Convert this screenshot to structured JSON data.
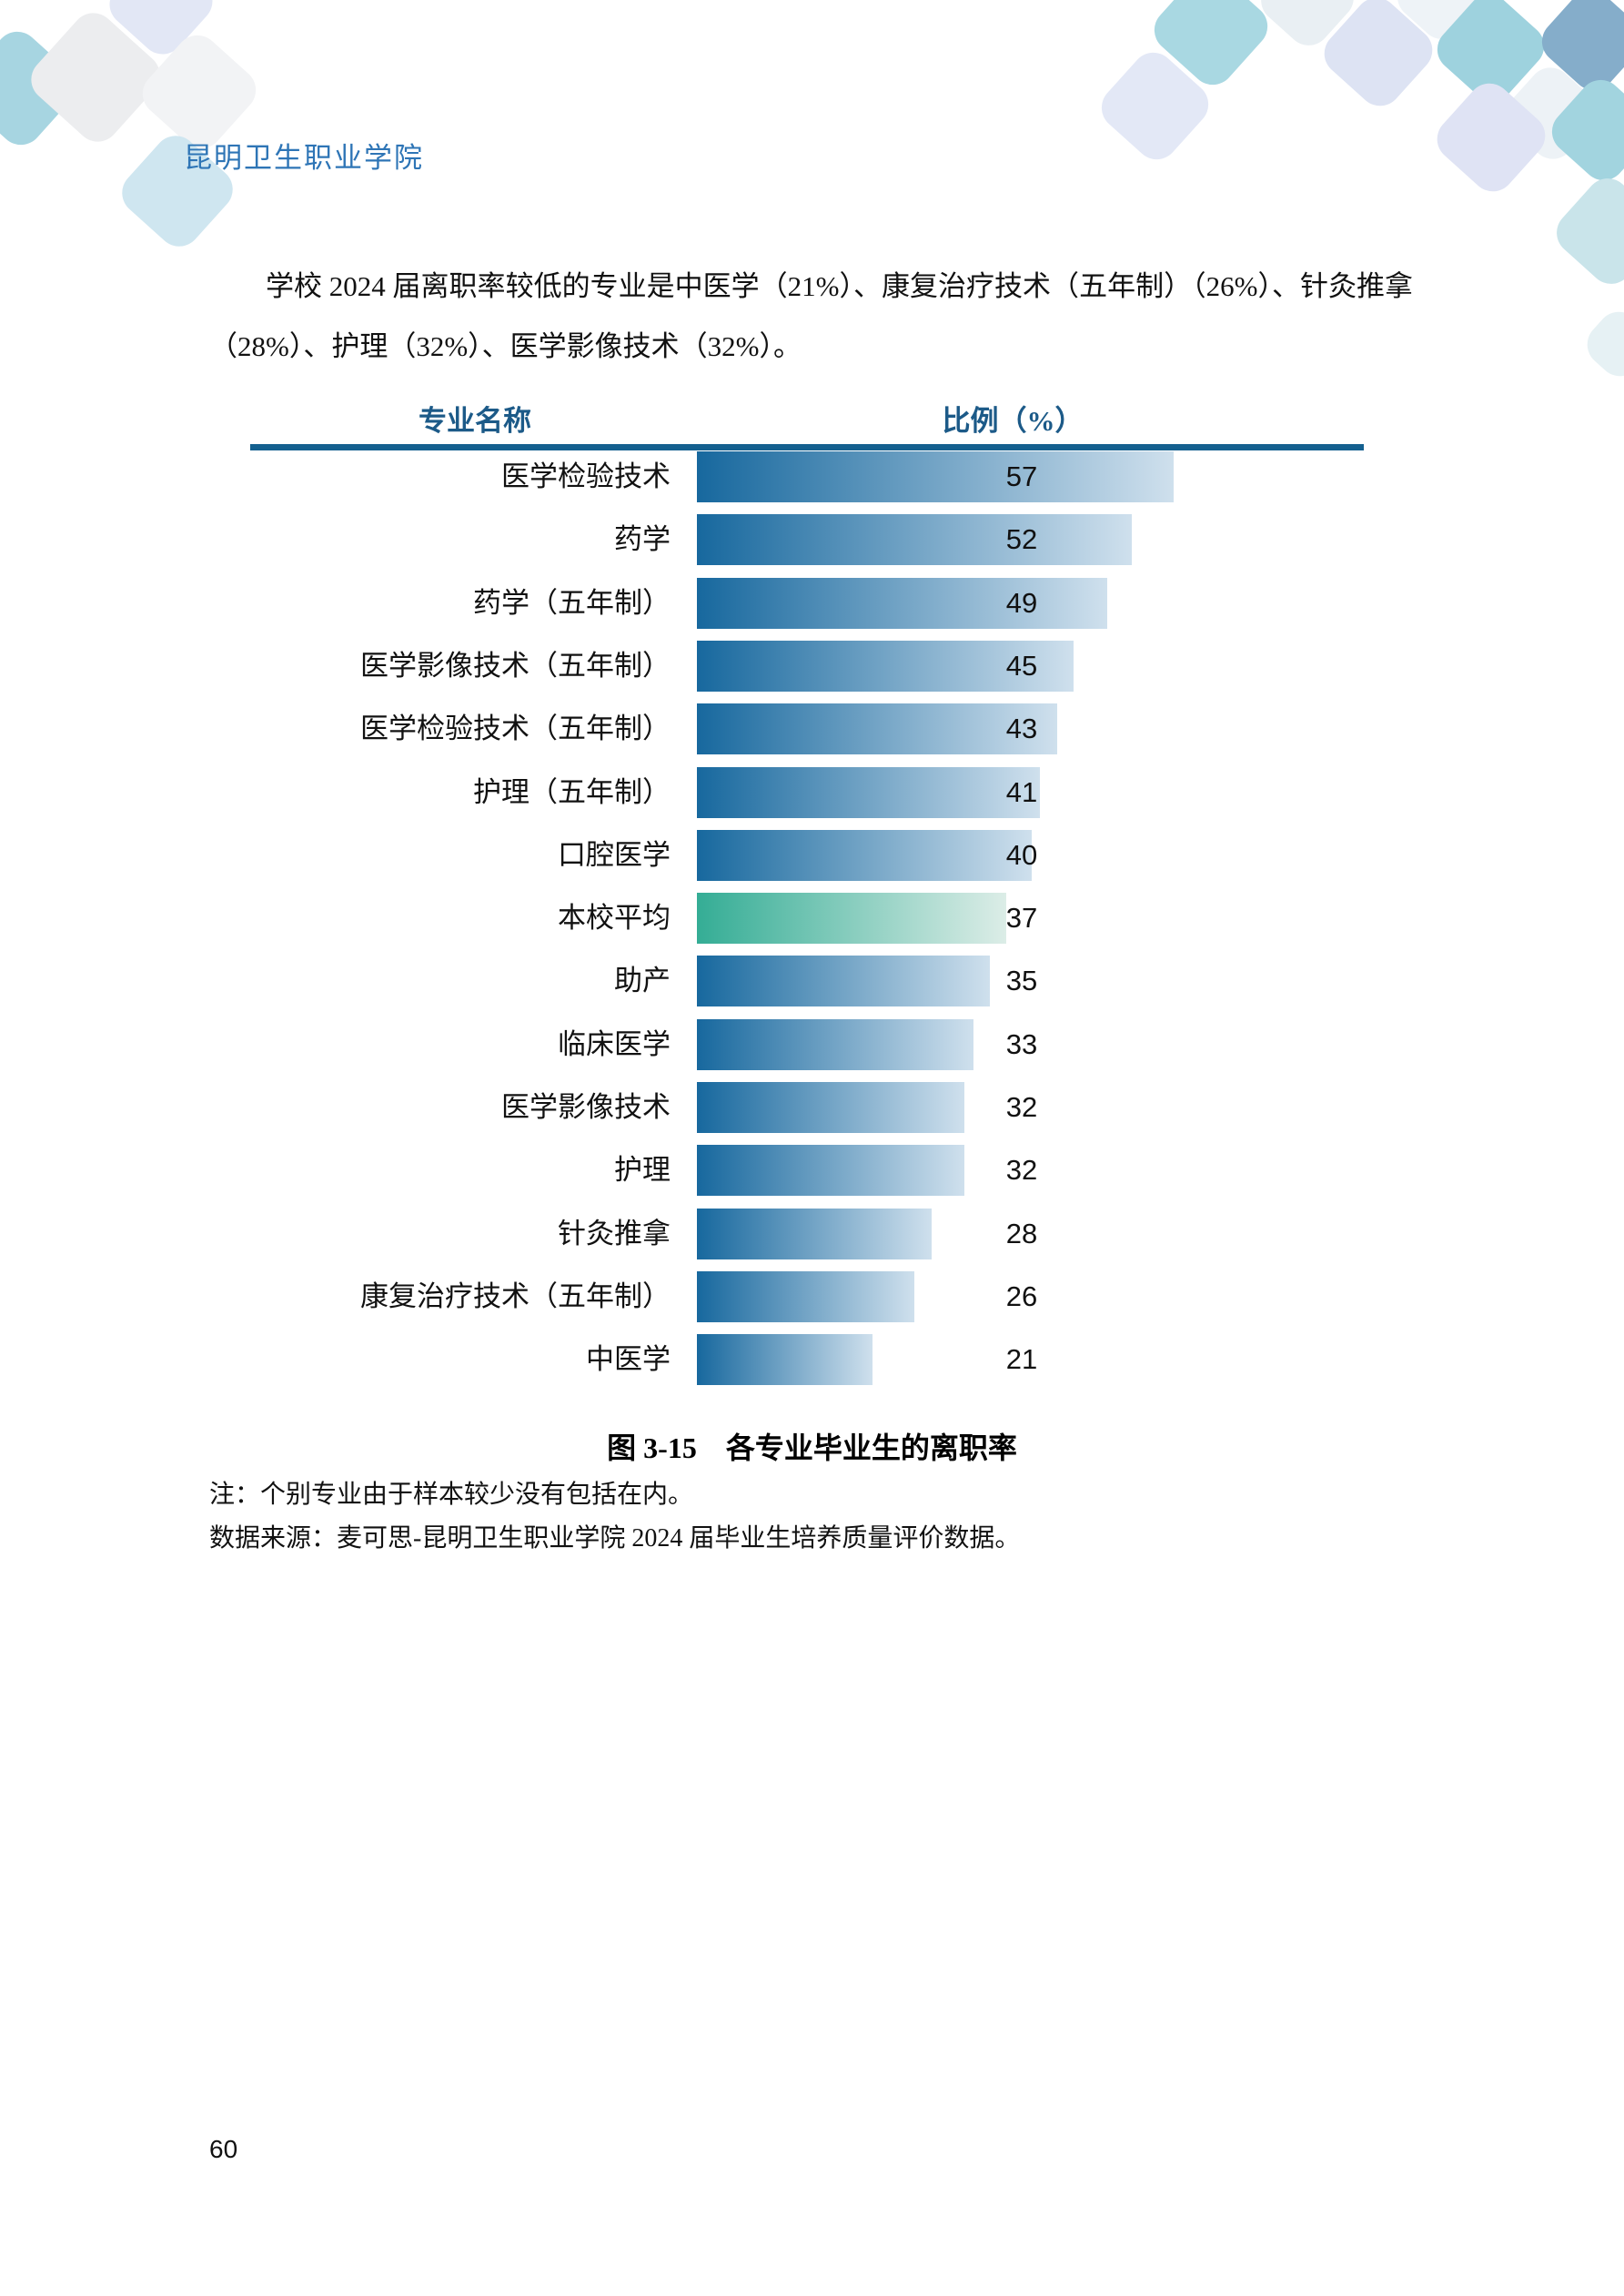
{
  "header": {
    "school_name": "昆明卫生职业学院",
    "color": "#2e75b6"
  },
  "paragraph": {
    "text": "学校 2024 届离职率较低的专业是中医学（21%）、康复治疗技术（五年制）（26%）、针灸推拿（28%）、护理（32%）、医学影像技术（32%）。"
  },
  "chart_data": {
    "type": "bar",
    "orientation": "horizontal",
    "title": "图 3-15　各专业毕业生的离职率",
    "column_headers": {
      "category": "专业名称",
      "value": "比例（%）"
    },
    "categories": [
      "医学检验技术",
      "药学",
      "药学（五年制）",
      "医学影像技术（五年制）",
      "医学检验技术（五年制）",
      "护理（五年制）",
      "口腔医学",
      "本校平均",
      "助产",
      "临床医学",
      "医学影像技术",
      "护理",
      "针灸推拿",
      "康复治疗技术（五年制）",
      "中医学"
    ],
    "values": [
      57,
      52,
      49,
      45,
      43,
      41,
      40,
      37,
      35,
      33,
      32,
      32,
      28,
      26,
      21
    ],
    "highlight_category": "本校平均",
    "highlight_value": 37,
    "xlim": [
      0,
      57
    ],
    "grid": false,
    "legend": false,
    "colors": {
      "bar_gradient_start": "#17689e",
      "bar_gradient_end": "#cfe0ed",
      "highlight_gradient_start": "#34ad95",
      "highlight_gradient_end": "#dcede7",
      "header_text": "#1c5a88",
      "header_rule": "#14608f"
    }
  },
  "caption": {
    "text": "图 3-15　各专业毕业生的离职率"
  },
  "notes": {
    "line1": "注：个别专业由于样本较少没有包括在内。",
    "line2": "数据来源：麦可思-昆明卫生职业学院 2024 届毕业生培养质量评价数据。"
  },
  "footer": {
    "page_number": "60"
  }
}
